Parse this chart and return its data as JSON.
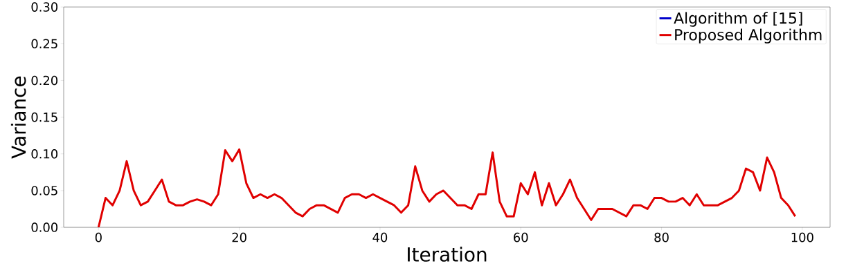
{
  "chart_data": {
    "type": "line",
    "xlabel": "Iteration",
    "ylabel": "Variance",
    "x": [
      0,
      1,
      2,
      3,
      4,
      5,
      6,
      7,
      8,
      9,
      10,
      11,
      12,
      13,
      14,
      15,
      16,
      17,
      18,
      19,
      20,
      21,
      22,
      23,
      24,
      25,
      26,
      27,
      28,
      29,
      30,
      31,
      32,
      33,
      34,
      35,
      36,
      37,
      38,
      39,
      40,
      41,
      42,
      43,
      44,
      45,
      46,
      47,
      48,
      49,
      50,
      51,
      52,
      53,
      54,
      55,
      56,
      57,
      58,
      59,
      60,
      61,
      62,
      63,
      64,
      65,
      66,
      67,
      68,
      69,
      70,
      71,
      72,
      73,
      74,
      75,
      76,
      77,
      78,
      79,
      80,
      81,
      82,
      83,
      84,
      85,
      86,
      87,
      88,
      89,
      90,
      91,
      92,
      93,
      94,
      95,
      96,
      97,
      98,
      99
    ],
    "series": [
      {
        "name": "Algorithm of [15]",
        "color": "#0000cc",
        "values": [
          null,
          null,
          null,
          null,
          null,
          null,
          null,
          null,
          null,
          null,
          null,
          null,
          null,
          null,
          null,
          null,
          null,
          null,
          null,
          null,
          null,
          null,
          null,
          null,
          null,
          null,
          null,
          null,
          null,
          null,
          null,
          null,
          null,
          null,
          null,
          null,
          null,
          null,
          null,
          null,
          null,
          null,
          null,
          null,
          null,
          null,
          null,
          null,
          null,
          null,
          null,
          null,
          null,
          null,
          null,
          null,
          null,
          null,
          null,
          null,
          null,
          null,
          null,
          null,
          null,
          null,
          null,
          null,
          null,
          null,
          null,
          null,
          null,
          null,
          null,
          null,
          null,
          null,
          null,
          null,
          null,
          null,
          null,
          null,
          null,
          null,
          null,
          null,
          null,
          null,
          null,
          null,
          null,
          null,
          null,
          null,
          null,
          null,
          null,
          null
        ]
      },
      {
        "name": "Proposed Algorithm",
        "color": "#e00000",
        "values": [
          0.0,
          0.04,
          0.03,
          0.05,
          0.09,
          0.05,
          0.03,
          0.035,
          0.05,
          0.065,
          0.035,
          0.03,
          0.03,
          0.035,
          0.038,
          0.035,
          0.03,
          0.045,
          0.105,
          0.09,
          0.106,
          0.06,
          0.04,
          0.045,
          0.04,
          0.045,
          0.04,
          0.03,
          0.02,
          0.015,
          0.025,
          0.03,
          0.03,
          0.025,
          0.02,
          0.04,
          0.045,
          0.045,
          0.04,
          0.045,
          0.04,
          0.035,
          0.03,
          0.02,
          0.03,
          0.083,
          0.05,
          0.035,
          0.045,
          0.05,
          0.04,
          0.03,
          0.03,
          0.025,
          0.045,
          0.045,
          0.102,
          0.035,
          0.015,
          0.015,
          0.06,
          0.045,
          0.075,
          0.03,
          0.06,
          0.03,
          0.045,
          0.065,
          0.04,
          0.025,
          0.01,
          0.025,
          0.025,
          0.025,
          0.02,
          0.015,
          0.03,
          0.03,
          0.025,
          0.04,
          0.04,
          0.035,
          0.035,
          0.04,
          0.03,
          0.045,
          0.03,
          0.03,
          0.03,
          0.035,
          0.04,
          0.05,
          0.08,
          0.075,
          0.05,
          0.095,
          0.075,
          0.04,
          0.03,
          0.015
        ]
      }
    ],
    "xlim": [
      -4.95,
      103.95
    ],
    "ylim": [
      0,
      0.3
    ],
    "xticks": [
      0,
      20,
      40,
      60,
      80,
      100
    ],
    "yticks": [
      {
        "value": 0,
        "label": "0.00"
      },
      {
        "value": 0.05,
        "label": "0.05"
      },
      {
        "value": 0.1,
        "label": "0.10"
      },
      {
        "value": 0.15,
        "label": "0.15"
      },
      {
        "value": 0.2,
        "label": "0.20"
      },
      {
        "value": 0.25,
        "label": "0.25"
      },
      {
        "value": 0.3,
        "label": "0.30"
      }
    ],
    "grid": false,
    "legend": "top right",
    "marker": "none",
    "line_style": "solid"
  }
}
